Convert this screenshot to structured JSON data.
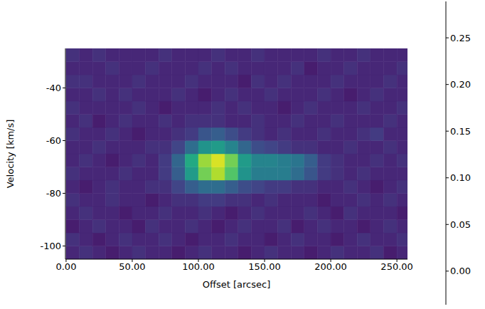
{
  "chart_data": {
    "type": "heatmap",
    "color": "viridis",
    "xlabel": "Offset [arcsec]",
    "ylabel": "Velocity [km/s]",
    "xlim": [
      -0.5,
      258
    ],
    "xticks": [
      {
        "value": 0,
        "label": "0.00"
      },
      {
        "value": 50,
        "label": "50.00"
      },
      {
        "value": 100,
        "label": "100.00"
      },
      {
        "value": 150,
        "label": "150.00"
      },
      {
        "value": 200,
        "label": "200.00"
      },
      {
        "value": 250,
        "label": "250.00"
      }
    ],
    "ylim": [
      -105,
      -25
    ],
    "yticks": [
      -100,
      -80,
      -60,
      -40
    ],
    "x_bins": [
      0,
      10,
      20,
      30,
      40,
      50,
      60,
      70,
      80,
      90,
      100,
      110,
      120,
      130,
      140,
      150,
      160,
      170,
      180,
      190,
      200,
      210,
      220,
      230,
      240,
      250,
      260
    ],
    "y_bins": [
      -105,
      -100,
      -95,
      -90,
      -85,
      -80,
      -75,
      -70,
      -65,
      -60,
      -55,
      -50,
      -45,
      -40,
      -35,
      -30,
      -25
    ],
    "cells": [
      [
        0,
        0.01,
        0,
        -0.01,
        0,
        0.01,
        0,
        0,
        -0.01,
        0,
        0.01,
        0,
        0,
        -0.01,
        0,
        0.01,
        0,
        0,
        -0.01,
        0,
        0.01,
        0,
        0,
        0.01,
        -0.01,
        0
      ],
      [
        0.01,
        0,
        -0.01,
        0,
        0.01,
        0,
        0,
        0.01,
        0,
        -0.01,
        0,
        0,
        0.01,
        0,
        0,
        -0.01,
        0,
        0.01,
        0,
        0,
        -0.01,
        0,
        0.01,
        0,
        0,
        0.01
      ],
      [
        -0.01,
        0,
        0.01,
        0,
        0,
        -0.01,
        0.01,
        0,
        0,
        0.01,
        0,
        -0.01,
        0,
        0.01,
        0,
        0,
        0.01,
        -0.01,
        0,
        0.01,
        0,
        0,
        -0.01,
        0,
        0.01,
        0
      ],
      [
        0,
        0.01,
        0,
        0,
        -0.01,
        0,
        0,
        0.01,
        0,
        0,
        0.01,
        0,
        -0.01,
        0,
        0.01,
        0,
        0,
        0,
        0.01,
        0,
        -0.01,
        0.01,
        0,
        0,
        0,
        -0.01
      ],
      [
        0.01,
        0,
        0,
        0.01,
        0,
        0,
        -0.01,
        0,
        0.01,
        0.01,
        0.02,
        0.02,
        0.01,
        0.01,
        0,
        0.01,
        0,
        0,
        0,
        -0.01,
        0,
        0,
        0.01,
        0,
        0.01,
        0
      ],
      [
        0,
        -0.01,
        0,
        0.01,
        0,
        0,
        0.01,
        0.01,
        0.03,
        0.06,
        0.08,
        0.08,
        0.06,
        0.04,
        0.03,
        0.02,
        0.02,
        0.01,
        0.01,
        0,
        0,
        0.01,
        0,
        -0.01,
        0,
        0.01
      ],
      [
        0.01,
        0,
        0,
        0,
        0.01,
        0,
        0,
        0.02,
        0.06,
        0.14,
        0.22,
        0.25,
        0.2,
        0.13,
        0.1,
        0.1,
        0.1,
        0.08,
        0.05,
        0.02,
        0.01,
        0,
        0.01,
        0,
        0,
        0
      ],
      [
        0,
        0.01,
        0,
        -0.01,
        0,
        0.01,
        0,
        0.02,
        0.07,
        0.16,
        0.24,
        0.27,
        0.22,
        0.14,
        0.11,
        0.11,
        0.1,
        0.09,
        0.06,
        0.02,
        0.01,
        0,
        0,
        0.01,
        0,
        0.01
      ],
      [
        0,
        0,
        0.01,
        0,
        0,
        0,
        0.01,
        0.01,
        0.03,
        0.08,
        0.13,
        0.14,
        0.11,
        0.07,
        0.04,
        0.03,
        0.02,
        0.01,
        0.01,
        0,
        0,
        0.01,
        0,
        0,
        0.01,
        0
      ],
      [
        0.01,
        0,
        0,
        0.01,
        0,
        -0.01,
        0,
        0,
        0.01,
        0.02,
        0.05,
        0.06,
        0.04,
        0.02,
        0.01,
        0,
        0.01,
        0,
        0,
        0.01,
        0,
        0,
        0.01,
        0.02,
        0,
        0
      ],
      [
        0,
        0.01,
        -0.01,
        0,
        0.01,
        0,
        0,
        0.01,
        0,
        0.01,
        0.01,
        0.01,
        0,
        0,
        0.01,
        0,
        0,
        0.01,
        0,
        0,
        0.01,
        0,
        0,
        0,
        0.01,
        0
      ],
      [
        0.01,
        0,
        0,
        0,
        0,
        0.01,
        0,
        -0.01,
        0,
        0,
        0,
        0.01,
        0,
        0.01,
        0,
        0,
        -0.01,
        0,
        0.01,
        0,
        0,
        0,
        0.01,
        0,
        0,
        0.01
      ],
      [
        0,
        0,
        0.01,
        0,
        0.01,
        0,
        0,
        0,
        0.01,
        0,
        -0.01,
        0,
        0.01,
        0,
        0,
        0.01,
        0,
        0,
        0,
        0.01,
        0,
        -0.01,
        0,
        0.01,
        0,
        0
      ],
      [
        0.01,
        0.01,
        0,
        0,
        0,
        0.01,
        0,
        0,
        0,
        0.01,
        0,
        0,
        0,
        -0.01,
        0.01,
        0,
        0.01,
        0,
        0,
        0,
        0.01,
        0,
        0,
        0,
        0.01,
        0
      ],
      [
        0,
        0,
        0,
        0.01,
        0,
        0,
        0.01,
        0,
        0,
        0,
        0.01,
        0,
        0.01,
        0,
        0,
        0,
        0,
        0.01,
        -0.01,
        0,
        0,
        0.01,
        0,
        0,
        0,
        0.01
      ],
      [
        0.01,
        0,
        0.01,
        0,
        0,
        0,
        0,
        0.01,
        0,
        0,
        0,
        0.01,
        0,
        0,
        0.01,
        0,
        0,
        0,
        0,
        0.01,
        0,
        0,
        0.01,
        0,
        0,
        0
      ]
    ],
    "colorbar": {
      "range": [
        -0.036,
        0.289
      ],
      "ticks": [
        {
          "value": 0,
          "label": "0.00"
        },
        0.05,
        {
          "value": 0.1,
          "label": "0.10"
        },
        0.15,
        {
          "value": 0.2,
          "label": "0.20"
        },
        0.25
      ]
    }
  }
}
